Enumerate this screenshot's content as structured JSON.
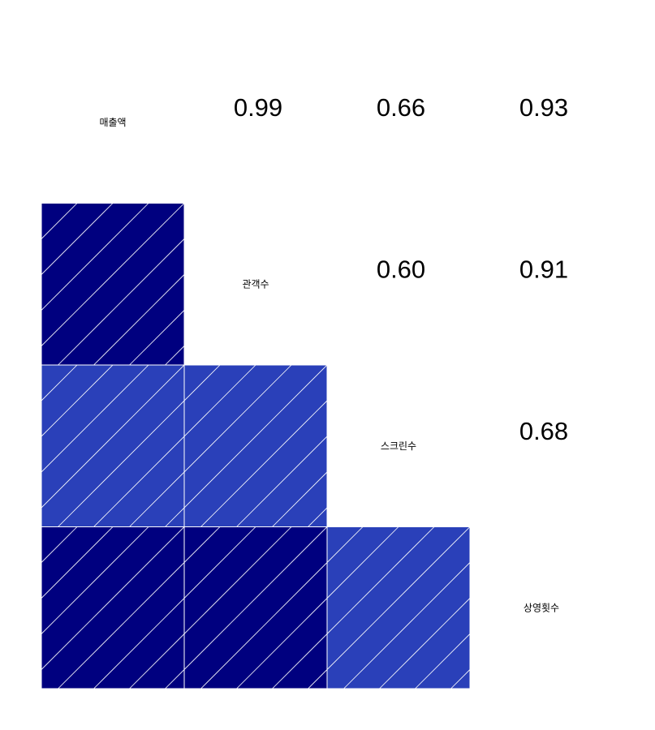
{
  "chart_data": {
    "type": "heatmap",
    "subtype": "correlogram",
    "lower_panel": "shade",
    "upper_panel": "pts-text",
    "variables": [
      "매출액",
      "관객수",
      "스크린수",
      "상영횟수"
    ],
    "correlations": [
      [
        1.0,
        0.99,
        0.66,
        0.93
      ],
      [
        0.99,
        1.0,
        0.6,
        0.91
      ],
      [
        0.66,
        0.6,
        1.0,
        0.68
      ],
      [
        0.93,
        0.91,
        0.68,
        1.0
      ]
    ],
    "correlation_labels": [
      [
        "",
        "0.99",
        "0.66",
        "0.93"
      ],
      [
        "0.99",
        "",
        "0.60",
        "0.91"
      ],
      [
        "0.66",
        "0.60",
        "",
        "0.68"
      ],
      [
        "0.93",
        "0.91",
        "0.68",
        ""
      ]
    ],
    "color_levels": [
      {
        "min": 0.8,
        "max": 1.0,
        "color": "#00007F"
      },
      {
        "min": 0.6,
        "max": 0.8,
        "color": "#2A40B9"
      }
    ],
    "hatch_color": "#FFFFFF"
  }
}
